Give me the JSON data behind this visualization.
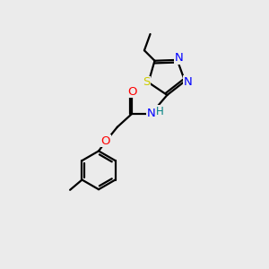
{
  "bg_color": "#ebebeb",
  "bond_color": "#000000",
  "colors": {
    "N": "#0000ff",
    "O": "#ff0000",
    "S": "#cccc00",
    "H": "#008080",
    "C": "#000000"
  }
}
